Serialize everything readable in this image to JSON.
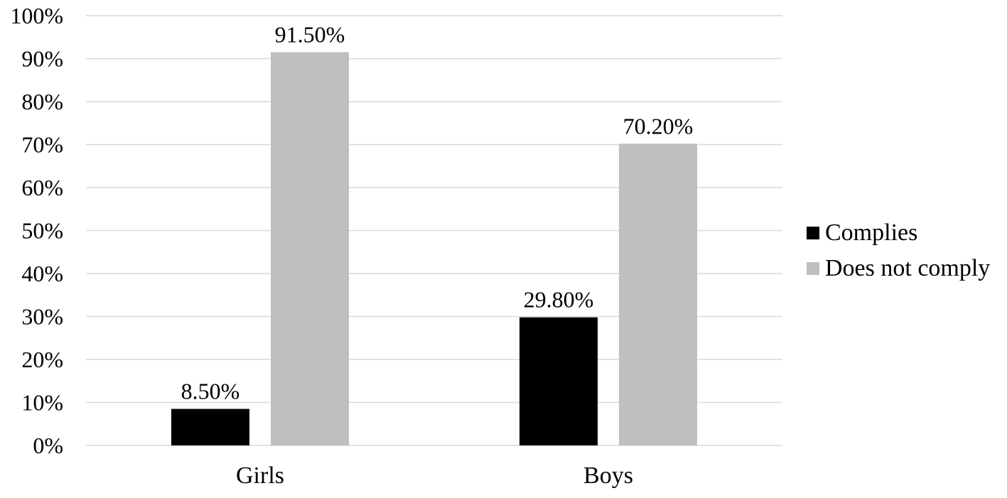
{
  "chart_data": {
    "type": "bar",
    "title": "",
    "xlabel": "",
    "ylabel": "",
    "categories": [
      "Girls",
      "Boys"
    ],
    "series": [
      {
        "name": "Complies",
        "color": "#000000",
        "values": [
          8.5,
          29.8
        ],
        "labels": [
          "8.50%",
          "29.80%"
        ]
      },
      {
        "name": "Does not comply",
        "color": "#bfbfbf",
        "values": [
          91.5,
          70.2
        ],
        "labels": [
          "91.50%",
          "70.20%"
        ]
      }
    ],
    "ylim": [
      0,
      100
    ],
    "yticks": [
      0,
      10,
      20,
      30,
      40,
      50,
      60,
      70,
      80,
      90,
      100
    ],
    "ytick_labels": [
      "0%",
      "10%",
      "20%",
      "30%",
      "40%",
      "50%",
      "60%",
      "70%",
      "80%",
      "90%",
      "100%"
    ],
    "grid": true,
    "gridline_color": "#d9d9d9",
    "legend_position": "right"
  }
}
